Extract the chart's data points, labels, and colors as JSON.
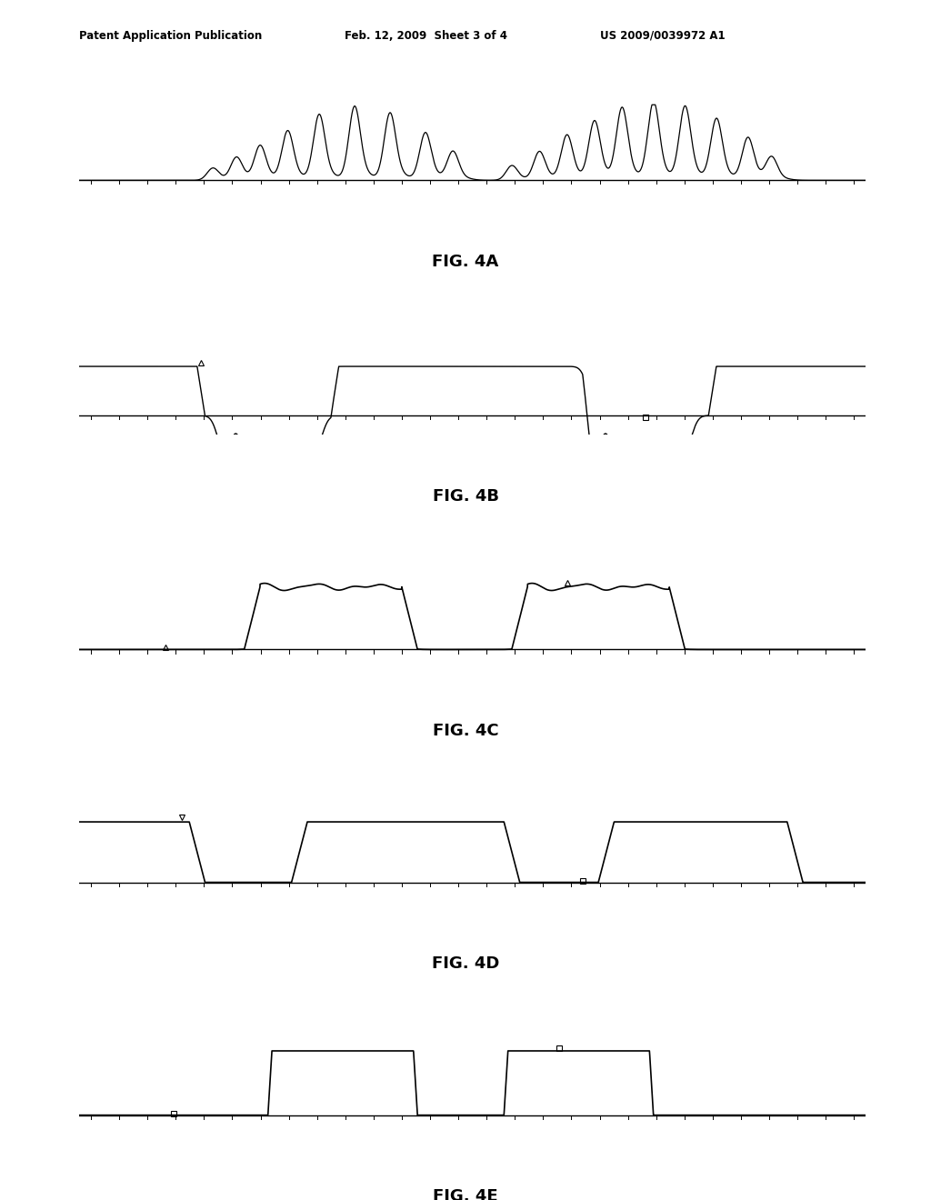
{
  "title_left": "Patent Application Publication",
  "title_mid": "Feb. 12, 2009  Sheet 3 of 4",
  "title_right": "US 2009/0039972 A1",
  "fig_labels": [
    "FIG. 4A",
    "FIG. 4B",
    "FIG. 4C",
    "FIG. 4D",
    "FIG. 4E"
  ],
  "background_color": "#ffffff",
  "line_color": "#000000",
  "page_width": 10.24,
  "page_height": 13.2
}
